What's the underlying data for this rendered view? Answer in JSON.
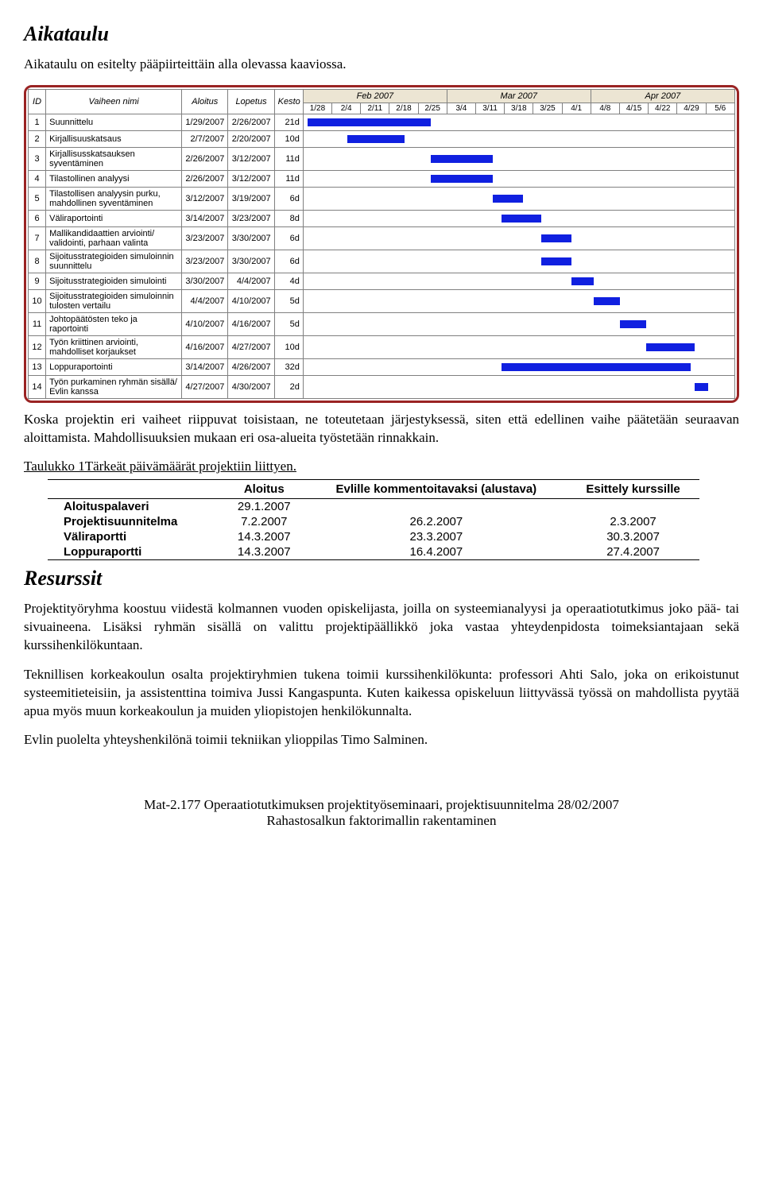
{
  "section_schedule_title": "Aikataulu",
  "schedule_intro": "Aikataulu on esitelty pääpiirteittäin alla olevassa kaaviossa.",
  "gantt": {
    "colors": {
      "bar": "#1020e0",
      "border": "#9a2323",
      "month_bg": "#ece5d3",
      "grid": "#808080"
    },
    "columns": {
      "id": "ID",
      "name": "Vaiheen nimi",
      "start": "Aloitus",
      "end": "Lopetus",
      "dur": "Kesto"
    },
    "months": [
      "Feb 2007",
      "Mar 2007",
      "Apr 2007"
    ],
    "ticks": [
      "1/28",
      "2/4",
      "2/11",
      "2/18",
      "2/25",
      "3/4",
      "3/11",
      "3/18",
      "3/25",
      "4/1",
      "4/8",
      "4/15",
      "4/22",
      "4/29",
      "5/6"
    ],
    "timeline_start": "2007-01-28",
    "timeline_end": "2007-05-06",
    "tasks": [
      {
        "id": "1",
        "name": "Suunnittelu",
        "start": "1/29/2007",
        "end": "2/26/2007",
        "dur": "21d",
        "s": "2007-01-29",
        "e": "2007-02-26"
      },
      {
        "id": "2",
        "name": "Kirjallisuuskatsaus",
        "start": "2/7/2007",
        "end": "2/20/2007",
        "dur": "10d",
        "s": "2007-02-07",
        "e": "2007-02-20"
      },
      {
        "id": "3",
        "name": "Kirjallisusskatsauksen syventäminen",
        "start": "2/26/2007",
        "end": "3/12/2007",
        "dur": "11d",
        "s": "2007-02-26",
        "e": "2007-03-12"
      },
      {
        "id": "4",
        "name": "Tilastollinen analyysi",
        "start": "2/26/2007",
        "end": "3/12/2007",
        "dur": "11d",
        "s": "2007-02-26",
        "e": "2007-03-12"
      },
      {
        "id": "5",
        "name": "Tilastollisen analyysin purku, mahdollinen syventäminen",
        "start": "3/12/2007",
        "end": "3/19/2007",
        "dur": "6d",
        "s": "2007-03-12",
        "e": "2007-03-19"
      },
      {
        "id": "6",
        "name": "Väliraportointi",
        "start": "3/14/2007",
        "end": "3/23/2007",
        "dur": "8d",
        "s": "2007-03-14",
        "e": "2007-03-23"
      },
      {
        "id": "7",
        "name": "Mallikandidaattien arviointi/ validointi,  parhaan valinta",
        "start": "3/23/2007",
        "end": "3/30/2007",
        "dur": "6d",
        "s": "2007-03-23",
        "e": "2007-03-30"
      },
      {
        "id": "8",
        "name": "Sijoitusstrategioiden simuloinnin suunnittelu",
        "start": "3/23/2007",
        "end": "3/30/2007",
        "dur": "6d",
        "s": "2007-03-23",
        "e": "2007-03-30"
      },
      {
        "id": "9",
        "name": "Sijoitusstrategioiden simulointi",
        "start": "3/30/2007",
        "end": "4/4/2007",
        "dur": "4d",
        "s": "2007-03-30",
        "e": "2007-04-04"
      },
      {
        "id": "10",
        "name": "Sijoitusstrategioiden simuloinnin tulosten vertailu",
        "start": "4/4/2007",
        "end": "4/10/2007",
        "dur": "5d",
        "s": "2007-04-04",
        "e": "2007-04-10"
      },
      {
        "id": "11",
        "name": "Johtopäätösten teko ja raportointi",
        "start": "4/10/2007",
        "end": "4/16/2007",
        "dur": "5d",
        "s": "2007-04-10",
        "e": "2007-04-16"
      },
      {
        "id": "12",
        "name": "Työn kriittinen arviointi, mahdolliset korjaukset",
        "start": "4/16/2007",
        "end": "4/27/2007",
        "dur": "10d",
        "s": "2007-04-16",
        "e": "2007-04-27"
      },
      {
        "id": "13",
        "name": "Loppuraportointi",
        "start": "3/14/2007",
        "end": "4/26/2007",
        "dur": "32d",
        "s": "2007-03-14",
        "e": "2007-04-26"
      },
      {
        "id": "14",
        "name": "Työn purkaminen ryhmän sisällä/ Evlin kanssa",
        "start": "4/27/2007",
        "end": "4/30/2007",
        "dur": "2d",
        "s": "2007-04-27",
        "e": "2007-04-30"
      }
    ]
  },
  "after_gantt": "Koska projektin eri vaiheet riippuvat toisistaan, ne toteutetaan järjestyksessä, siten että edellinen vaihe päätetään seuraavan aloittamista. Mahdollisuuksien mukaan eri osa-alueita työstetään rinnakkain.",
  "table_caption": "Taulukko 1Tärkeät päivämäärät projektiin liittyen.",
  "summary": {
    "columns": {
      "blank": "",
      "start": "Aloitus",
      "review": "Evlille kommentoitavaksi (alustava)",
      "present": "Esittely kurssille"
    },
    "rows": [
      {
        "label": "Aloituspalaveri",
        "start": "29.1.2007",
        "review": "",
        "present": ""
      },
      {
        "label": "Projektisuunnitelma",
        "start": "7.2.2007",
        "review": "26.2.2007",
        "present": "2.3.2007"
      },
      {
        "label": "Väliraportti",
        "start": "14.3.2007",
        "review": "23.3.2007",
        "present": "30.3.2007"
      },
      {
        "label": "Loppuraportti",
        "start": "14.3.2007",
        "review": "16.4.2007",
        "present": "27.4.2007"
      }
    ]
  },
  "section_resources_title": "Resurssit",
  "resources_p1": "Projektityöryhma koostuu viidestä kolmannen vuoden opiskelijasta, joilla on systeemianalyysi ja operaatiotutkimus joko pää- tai sivuaineena. Lisäksi ryhmän sisällä on valittu projektipäällikkö joka vastaa yhteydenpidosta toimeksiantajaan sekä kurssihenkilökuntaan.",
  "resources_p2": "Teknillisen korkeakoulun osalta projektiryhmien tukena toimii kurssihenkilökunta: professori Ahti Salo, joka on erikoistunut systeemitieteisiin, ja assistenttina toimiva Jussi Kangaspunta. Kuten kaikessa opiskeluun liittyvässä työssä on mahdollista pyytää apua myös muun korkeakoulun ja muiden yliopistojen henkilökunnalta.",
  "resources_p3": "Evlin puolelta yhteyshenkilönä toimii tekniikan ylioppilas Timo Salminen.",
  "footer_line1": "Mat-2.177 Operaatiotutkimuksen projektityöseminaari, projektisuunnitelma 28/02/2007",
  "footer_line2": "Rahastosalkun faktorimallin rakentaminen"
}
